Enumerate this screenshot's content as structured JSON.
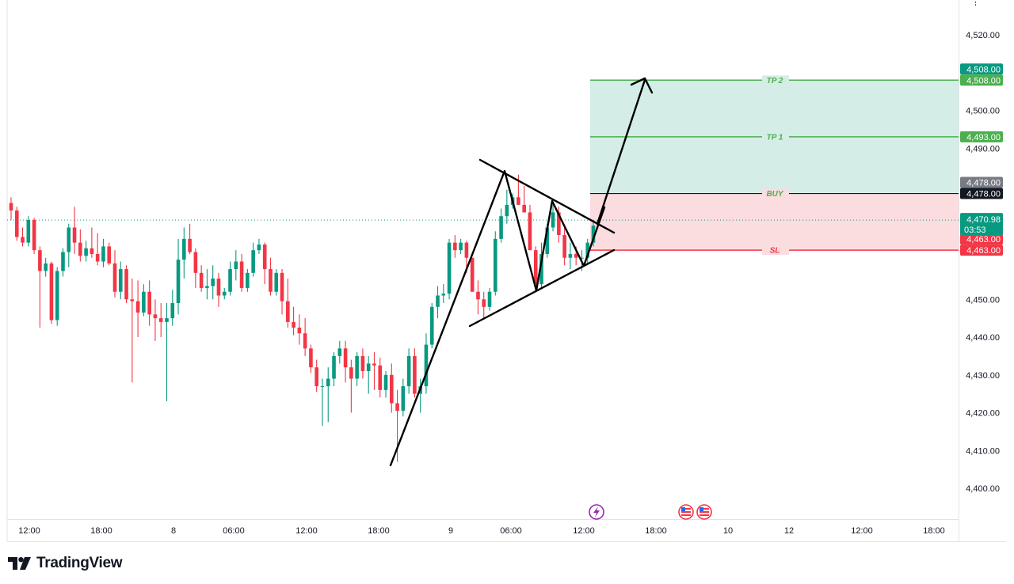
{
  "brand": {
    "name": "TradingView",
    "logo_icon": "tradingview-logo-icon"
  },
  "chart_data": {
    "type": "candlestick",
    "y_axis": {
      "ticks": [
        "4,400.00",
        "4,410.00",
        "4,420.00",
        "4,430.00",
        "4,440.00",
        "4,450.00",
        "4,460.00",
        "4,470.00",
        "4,480.00",
        "4,490.00",
        "4,500.00",
        "4,510.00",
        "4,520.00"
      ],
      "tick_values": [
        4400,
        4410,
        4420,
        4430,
        4440,
        4450,
        4460,
        4470,
        4480,
        4490,
        4500,
        4510,
        4520
      ],
      "range": [
        4394.5,
        4529.5
      ]
    },
    "x_axis": {
      "ticks": [
        "12:00",
        "18:00",
        "8",
        "06:00",
        "12:00",
        "18:00",
        "9",
        "06:00",
        "12:00",
        "18:00",
        "10",
        "12",
        "12:00",
        "18:00"
      ]
    },
    "candles": [
      [
        4475.5,
        4477,
        4471,
        4473.5
      ],
      [
        4473.5,
        4474.5,
        4465.5,
        4466.5
      ],
      [
        4466.5,
        4469,
        4464,
        4465
      ],
      [
        4465,
        4472,
        4464,
        4471
      ],
      [
        4471,
        4471.5,
        4462,
        4463
      ],
      [
        4463,
        4464,
        4442.5,
        4457.5
      ],
      [
        4457.5,
        4461,
        4456,
        4459.5
      ],
      [
        4459.5,
        4460,
        4443.5,
        4444.5
      ],
      [
        4444.5,
        4458.5,
        4443,
        4457.5
      ],
      [
        4457.5,
        4463.5,
        4456,
        4462.5
      ],
      [
        4462.5,
        4470,
        4458.5,
        4469
      ],
      [
        4469,
        4474.5,
        4462,
        4465
      ],
      [
        4465,
        4468.5,
        4460,
        4461.5
      ],
      [
        4461.5,
        4465.5,
        4460,
        4463.5
      ],
      [
        4463.5,
        4469,
        4461,
        4462
      ],
      [
        4462,
        4467.5,
        4459,
        4460
      ],
      [
        4460,
        4466,
        4458.5,
        4464
      ],
      [
        4464,
        4465,
        4459,
        4459.5
      ],
      [
        4459.5,
        4463,
        4450.5,
        4452
      ],
      [
        4452,
        4460,
        4450,
        4458
      ],
      [
        4458,
        4459,
        4449,
        4450
      ],
      [
        4450,
        4455.5,
        4428,
        4449.5
      ],
      [
        4449.5,
        4455,
        4440,
        4446.5
      ],
      [
        4446.5,
        4454,
        4445.5,
        4452
      ],
      [
        4452,
        4455,
        4443,
        4446
      ],
      [
        4446,
        4450,
        4439,
        4445
      ],
      [
        4445,
        4449,
        4440,
        4444
      ],
      [
        4444,
        4449,
        4423,
        4445
      ],
      [
        4445,
        4452.5,
        4443,
        4449
      ],
      [
        4449,
        4466,
        4446,
        4460.5
      ],
      [
        4460.5,
        4469,
        4455.5,
        4466
      ],
      [
        4466,
        4470,
        4462,
        4462.5
      ],
      [
        4462.5,
        4463.5,
        4453,
        4457
      ],
      [
        4457,
        4459,
        4452,
        4453
      ],
      [
        4453,
        4458,
        4450,
        4453.5
      ],
      [
        4453.5,
        4459,
        4450,
        4455.5
      ],
      [
        4455.5,
        4457,
        4448,
        4451
      ],
      [
        4451,
        4453,
        4450,
        4452
      ],
      [
        4452,
        4460,
        4451,
        4458
      ],
      [
        4458,
        4463,
        4455,
        4460
      ],
      [
        4460,
        4462,
        4452,
        4453
      ],
      [
        4453,
        4458,
        4452,
        4457
      ],
      [
        4457,
        4465,
        4456,
        4463
      ],
      [
        4463,
        4466,
        4462,
        4464.5
      ],
      [
        4464.5,
        4465,
        4454,
        4458
      ],
      [
        4458,
        4461,
        4451,
        4452
      ],
      [
        4452,
        4458,
        4451,
        4457
      ],
      [
        4457,
        4458,
        4446,
        4449.5
      ],
      [
        4449.5,
        4455.5,
        4442.5,
        4444
      ],
      [
        4444,
        4448,
        4440.5,
        4442.5
      ],
      [
        4442.5,
        4446,
        4438,
        4441
      ],
      [
        4441,
        4445,
        4435,
        4437
      ],
      [
        4437,
        4438,
        4430.5,
        4432
      ],
      [
        4432,
        4434,
        4425.5,
        4427
      ],
      [
        4427,
        4429,
        4416.5,
        4427
      ],
      [
        4427,
        4432,
        4417.5,
        4429
      ],
      [
        4429,
        4436,
        4427,
        4435
      ],
      [
        4435,
        4439,
        4433,
        4437
      ],
      [
        4437,
        4439,
        4428,
        4432
      ],
      [
        4432,
        4434,
        4420,
        4429
      ],
      [
        4429,
        4436,
        4427,
        4435
      ],
      [
        4435,
        4437,
        4429,
        4431
      ],
      [
        4431,
        4435,
        4425,
        4433
      ],
      [
        4433,
        4436,
        4426,
        4432.5
      ],
      [
        4432.5,
        4434.5,
        4424,
        4426
      ],
      [
        4426,
        4431,
        4424,
        4430
      ],
      [
        4430,
        4433,
        4420,
        4422.5
      ],
      [
        4422.5,
        4426,
        4407,
        4420.5
      ],
      [
        4420.5,
        4429,
        4419,
        4427
      ],
      [
        4427,
        4437,
        4425,
        4435
      ],
      [
        4435,
        4437,
        4424,
        4425
      ],
      [
        4425,
        4429,
        4420,
        4427
      ],
      [
        4427,
        4441,
        4425,
        4438
      ],
      [
        4438,
        4449,
        4437,
        4448
      ],
      [
        4448,
        4453.5,
        4445,
        4451
      ],
      [
        4451,
        4454,
        4449,
        4451.5
      ],
      [
        4451.5,
        4466,
        4450,
        4465
      ],
      [
        4465,
        4467,
        4461,
        4463
      ],
      [
        4463,
        4466,
        4462,
        4465
      ],
      [
        4465,
        4465.5,
        4457,
        4461
      ],
      [
        4461,
        4461,
        4452,
        4452
      ],
      [
        4452,
        4455,
        4446,
        4450
      ],
      [
        4450,
        4452,
        4445,
        4448
      ],
      [
        4448,
        4453,
        4447,
        4452
      ],
      [
        4452,
        4468,
        4451,
        4466
      ],
      [
        4466,
        4474,
        4465,
        4472
      ],
      [
        4472,
        4479,
        4470,
        4475
      ],
      [
        4475,
        4478,
        4474,
        4477
      ],
      [
        4477,
        4483,
        4475,
        4475
      ],
      [
        4475,
        4480,
        4473,
        4473
      ],
      [
        4473,
        4475,
        4463,
        4463
      ],
      [
        4463,
        4464,
        4452,
        4454
      ],
      [
        4454,
        4465,
        4453,
        4462
      ],
      [
        4462,
        4470,
        4461,
        4469
      ],
      [
        4469,
        4475,
        4468,
        4473
      ],
      [
        4473,
        4474.5,
        4465,
        4467
      ],
      [
        4467,
        4469,
        4459,
        4461
      ],
      [
        4461,
        4465,
        4458,
        4462
      ],
      [
        4462,
        4464,
        4459,
        4461
      ],
      [
        4461,
        4463,
        4457.5,
        4461
      ],
      [
        4461,
        4466,
        4459,
        4465
      ],
      [
        4465,
        4471,
        4464,
        4469.5
      ]
    ],
    "levels": [
      {
        "label": "TP 2",
        "value": 4508.0,
        "badge": "4,508.00",
        "badge_top": "4,508.00"
      },
      {
        "label": "TP 1",
        "value": 4493.0,
        "badge": "4,493.00"
      },
      {
        "label": "BUY",
        "value": 4478.0,
        "badge": "4,478.00",
        "badge_top": "4,478.00"
      },
      {
        "label": "SL",
        "value": 4463.0,
        "badge": "4,463.00",
        "badge_top": "4,463.00"
      }
    ],
    "last_price": {
      "value": 4470.98,
      "label": "4,470.98",
      "countdown": "03:53"
    },
    "colors": {
      "up": "#089981",
      "down": "#f23645",
      "tp_zone": "#d4ede6",
      "sl_zone": "#fbdcdf",
      "tp_line": "#4caf50",
      "sl_line": "#f23645",
      "buy_line": "#131722"
    },
    "event_icons": [
      "lightning-event-icon",
      "us-flag-event-icon",
      "us-flag-event-icon"
    ]
  }
}
